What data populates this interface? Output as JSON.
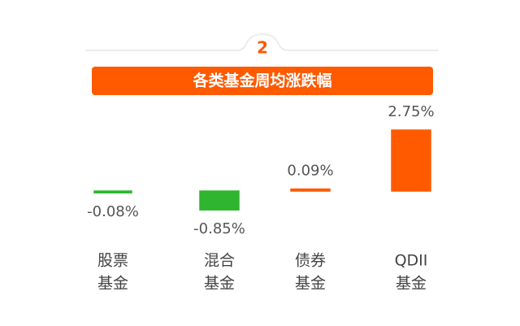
{
  "section_number": "2",
  "chart_data": {
    "type": "bar",
    "title": "各类基金周均涨跌幅",
    "categories": [
      [
        "股票",
        "基金"
      ],
      [
        "混合",
        "基金"
      ],
      [
        "债券",
        "基金"
      ],
      [
        "QDII",
        "基金"
      ]
    ],
    "values": [
      -0.08,
      -0.85,
      0.09,
      2.75
    ],
    "value_labels": [
      "-0.08%",
      "-0.85%",
      "0.09%",
      "2.75%"
    ],
    "positive_color": "#ff5a00",
    "negative_color": "#2fb52f"
  }
}
